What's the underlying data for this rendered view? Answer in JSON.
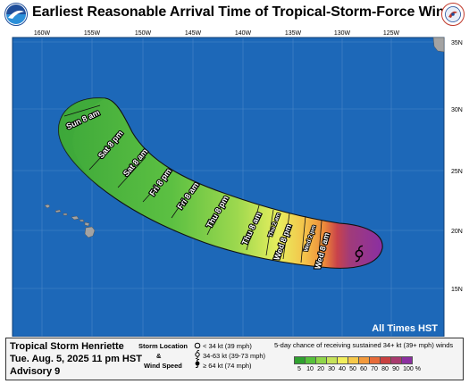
{
  "title": "Earliest Reasonable Arrival Time of Tropical-Storm-Force Winds",
  "logos": {
    "left": "noaa-logo",
    "right": "nws-logo"
  },
  "map": {
    "lon_labels": [
      "160W",
      "155W",
      "150W",
      "145W",
      "140W",
      "135W",
      "130W",
      "125W"
    ],
    "lat_labels": [
      "35N",
      "30N",
      "25N",
      "20N",
      "15N"
    ],
    "time_labels": [
      "Sun 8 am",
      "Sat 8 pm",
      "Sat 8 am",
      "Fri 8 pm",
      "Fri 8 am",
      "Thu 8 pm",
      "Thu 8 am",
      "Thu 2 am",
      "Wed 8 pm",
      "Wed 2 pm",
      "Wed 8 am"
    ],
    "note": "All Times HST",
    "colors": {
      "ocean": "#1d68b8",
      "land": "#a3a3a3",
      "outline": "#1a1a1a"
    }
  },
  "footer": {
    "storm_name": "Tropical Storm Henriette",
    "date": "Tue. Aug. 5, 2025  11 pm HST",
    "advisory": "Advisory 9",
    "storm_location_label": "Storm Location",
    "amp": "&",
    "wind_speed_label": "Wind Speed",
    "wind_legend": [
      "< 34 kt (39 mph)",
      "34-63 kt (39-73 mph)",
      "≥ 64 kt (74 mph)"
    ],
    "prob_title": "5-day chance of receiving sustained 34+ kt (39+ mph) winds",
    "prob_ticks": [
      "5",
      "10",
      "20",
      "30",
      "40",
      "50",
      "60",
      "70",
      "80",
      "90",
      "100 %"
    ],
    "prob_colors": [
      "#2fa12f",
      "#56c13b",
      "#8fd64a",
      "#c6e35a",
      "#f2ef5c",
      "#f7c94a",
      "#f39a3c",
      "#e76b39",
      "#c94040",
      "#a93a6e",
      "#8c2fa0"
    ]
  }
}
